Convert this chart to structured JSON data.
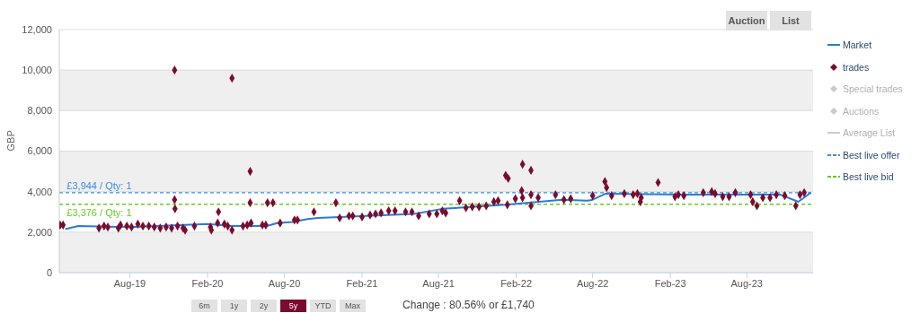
{
  "chart_data": {
    "type": "scatter",
    "ylabel": "GBP",
    "xlim": [
      "2019-02-15",
      "2024-01-05"
    ],
    "xticks": [
      {
        "value": "2019-08-01",
        "label": "Aug-19"
      },
      {
        "value": "2020-02-01",
        "label": "Feb-20"
      },
      {
        "value": "2020-08-01",
        "label": "Aug-20"
      },
      {
        "value": "2021-02-01",
        "label": "Feb-21"
      },
      {
        "value": "2021-08-01",
        "label": "Aug-21"
      },
      {
        "value": "2022-02-01",
        "label": "Feb-22"
      },
      {
        "value": "2022-08-01",
        "label": "Aug-22"
      },
      {
        "value": "2023-02-01",
        "label": "Feb-23"
      },
      {
        "value": "2023-08-01",
        "label": "Aug-23"
      }
    ],
    "ylim": [
      0,
      12000
    ],
    "yticks": [
      0,
      {
        "value": 2000,
        "label": "2,000"
      },
      {
        "value": 4000,
        "label": "4,000"
      },
      {
        "value": 6000,
        "label": "6,000"
      },
      {
        "value": 8000,
        "label": "8,000"
      },
      {
        "value": 10000,
        "label": "10,000"
      },
      {
        "value": 12000,
        "label": "12,000"
      }
    ],
    "grid": "y",
    "legend": "right",
    "series": [
      {
        "name": "Market",
        "type": "line",
        "marker": "none",
        "color": "#2b7bd6",
        "x": [
          "2019-03-01",
          "2019-04-01",
          "2019-08-01",
          "2020-02-01",
          "2020-04-01",
          "2020-06-20",
          "2020-07-15",
          "2020-08-20",
          "2020-09-25",
          "2020-10-20",
          "2021-06-05",
          "2021-08-10",
          "2022-01-08",
          "2022-05-20",
          "2022-07-20",
          "2022-08-01",
          "2022-09-01",
          "2023-03-20",
          "2023-10-20",
          "2023-12-01",
          "2023-12-31"
        ],
        "values": [
          2150,
          2300,
          2250,
          2400,
          2300,
          2300,
          2450,
          2500,
          2650,
          2700,
          2900,
          3150,
          3350,
          3600,
          3550,
          3600,
          3900,
          3850,
          3850,
          3500,
          3950
        ]
      },
      {
        "name": "trades",
        "marker": "diamond",
        "color": "#7a0c2e",
        "x": [
          "2019-02-17",
          "2019-02-24",
          "2019-05-20",
          "2019-06-01",
          "2019-06-10",
          "2019-07-05",
          "2019-07-10",
          "2019-07-25",
          "2019-08-05",
          "2019-08-20",
          "2019-09-01",
          "2019-09-15",
          "2019-09-28",
          "2019-10-12",
          "2019-10-26",
          "2019-11-08",
          "2019-11-15",
          "2019-11-15",
          "2019-11-16",
          "2019-11-22",
          "2019-12-05",
          "2019-12-10",
          "2020-01-01",
          "2020-02-08",
          "2020-02-10",
          "2020-02-25",
          "2020-02-27",
          "2020-03-12",
          "2020-03-20",
          "2020-03-30",
          "2020-03-30",
          "2020-04-25",
          "2020-05-05",
          "2020-05-12",
          "2020-05-12",
          "2020-05-14",
          "2020-06-10",
          "2020-06-18",
          "2020-06-22",
          "2020-07-05",
          "2020-07-22",
          "2020-08-25",
          "2020-09-01",
          "2020-10-10",
          "2020-12-01",
          "2020-12-10",
          "2021-01-01",
          "2021-01-10",
          "2021-02-01",
          "2021-02-20",
          "2021-03-05",
          "2021-03-18",
          "2021-04-05",
          "2021-04-20",
          "2021-05-15",
          "2021-05-30",
          "2021-06-15",
          "2021-07-10",
          "2021-07-28",
          "2021-08-10",
          "2021-08-18",
          "2021-09-20",
          "2021-10-05",
          "2021-10-20",
          "2021-11-05",
          "2021-11-22",
          "2021-12-10",
          "2021-12-20",
          "2022-01-07",
          "2022-01-13",
          "2022-01-11",
          "2022-01-30",
          "2022-02-14",
          "2022-02-16",
          "2022-02-16",
          "2022-03-08",
          "2022-03-08",
          "2022-03-08",
          "2022-03-25",
          "2022-05-05",
          "2022-05-25",
          "2022-06-10",
          "2022-08-01",
          "2022-08-30",
          "2022-09-03",
          "2022-09-15",
          "2022-10-15",
          "2022-11-05",
          "2022-11-15",
          "2022-11-22",
          "2022-11-24",
          "2023-01-03",
          "2023-02-12",
          "2023-02-20",
          "2023-03-05",
          "2023-04-20",
          "2023-05-10",
          "2023-05-18",
          "2023-06-05",
          "2023-06-20",
          "2023-07-05",
          "2023-08-10",
          "2023-08-15",
          "2023-08-25",
          "2023-09-08",
          "2023-09-25",
          "2023-10-10",
          "2023-10-30",
          "2023-11-25",
          "2023-12-05",
          "2023-12-15"
        ],
        "values": [
          2350,
          2350,
          2200,
          2300,
          2250,
          2200,
          2350,
          2300,
          2250,
          2400,
          2300,
          2300,
          2250,
          2200,
          2250,
          2200,
          10000,
          3600,
          3150,
          2300,
          2200,
          2100,
          2300,
          2250,
          2100,
          2450,
          3000,
          2400,
          2300,
          9600,
          2100,
          2300,
          2350,
          5000,
          3450,
          2450,
          2350,
          2350,
          3450,
          3450,
          2450,
          2600,
          2600,
          3000,
          3450,
          2700,
          2800,
          2800,
          2750,
          2850,
          2900,
          2950,
          3050,
          3050,
          3000,
          3000,
          2800,
          2900,
          2900,
          3050,
          2950,
          3550,
          3200,
          3250,
          3250,
          3300,
          3500,
          3550,
          4800,
          4650,
          3350,
          3650,
          4050,
          5350,
          3700,
          5050,
          3850,
          3300,
          3700,
          3850,
          3600,
          3650,
          3800,
          4500,
          4200,
          3800,
          3900,
          3850,
          3900,
          3500,
          3700,
          4450,
          3750,
          3850,
          3800,
          3950,
          4000,
          3900,
          3750,
          3750,
          3950,
          3850,
          3500,
          3300,
          3700,
          3700,
          3850,
          3800,
          3300,
          3850,
          3950
        ]
      },
      {
        "name": "Special trades",
        "marker": "diamond",
        "color": "#cccccc"
      },
      {
        "name": "Auctions",
        "marker": "diamond",
        "color": "#cccccc"
      },
      {
        "name": "Average List",
        "type": "line",
        "marker": "none",
        "color": "#cccccc"
      }
    ],
    "ref_lines": [
      {
        "axis": "y",
        "value": 3944,
        "label": "Best live offer",
        "color": "#3a8ee6",
        "line_style": "dashed"
      },
      {
        "axis": "y",
        "value": 3376,
        "label": "Best live bid",
        "color": "#6cc72a",
        "line_style": "dashed"
      }
    ],
    "annotations": [
      {
        "text": "£3,944 / Qty: 1",
        "x": "2019-02-20",
        "y": 3944
      },
      {
        "text": "£3,376 / Qty: 1",
        "x": "2019-02-20",
        "y": 3376
      },
      "Auction",
      "List",
      "6m",
      "1y",
      "2y",
      "5y",
      "YTD",
      "Max",
      "Change : 80.56% or £1,740"
    ]
  }
}
